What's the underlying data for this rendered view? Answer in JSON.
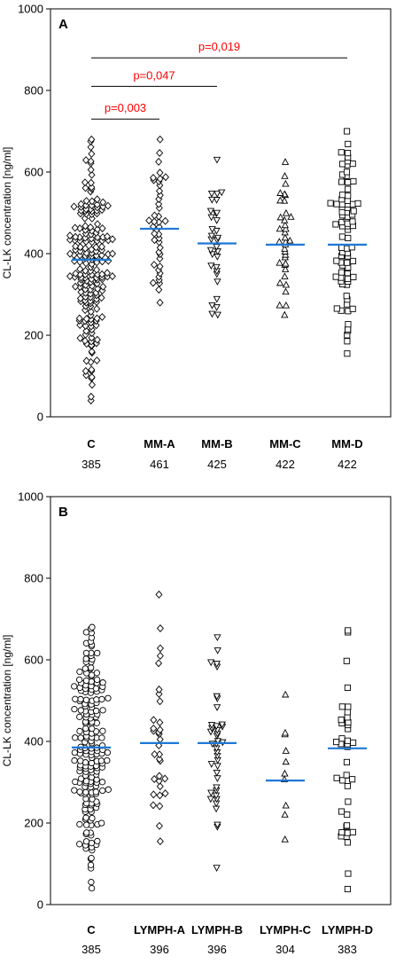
{
  "chart_data": [
    {
      "panel_label": "A",
      "type": "scatter",
      "ylabel": "CL-LK concentration [ng/ml]",
      "ylim": [
        0,
        1000
      ],
      "yticks": [
        0,
        200,
        400,
        600,
        800,
        1000
      ],
      "groups": [
        {
          "name": "C",
          "median_label": "385",
          "marker": "diamond",
          "median": 385,
          "n": 200,
          "min": 40,
          "max": 680
        },
        {
          "name": "MM-A",
          "median_label": "461",
          "marker": "diamond",
          "median": 461,
          "n": 42,
          "min": 280,
          "max": 680
        },
        {
          "name": "MM-B",
          "median_label": "425",
          "marker": "triangle-down",
          "median": 425,
          "n": 32,
          "min": 250,
          "max": 630
        },
        {
          "name": "MM-C",
          "median_label": "422",
          "marker": "triangle-up",
          "median": 422,
          "n": 36,
          "min": 250,
          "max": 625
        },
        {
          "name": "MM-D",
          "median_label": "422",
          "marker": "square",
          "median": 422,
          "n": 82,
          "min": 155,
          "max": 700
        }
      ],
      "annotations": [
        {
          "text": "p=0,003",
          "from": "C",
          "to": "MM-A",
          "y": 730
        },
        {
          "text": "p=0,047",
          "from": "C",
          "to": "MM-B",
          "y": 810
        },
        {
          "text": "p=0,019",
          "from": "C",
          "to": "MM-D",
          "y": 880
        }
      ],
      "median_color": "#1f78d4",
      "annotation_color": "#ff0000"
    },
    {
      "panel_label": "B",
      "type": "scatter",
      "ylabel": "CL-LK concentration [ng/ml]",
      "ylim": [
        0,
        1000
      ],
      "yticks": [
        0,
        200,
        400,
        600,
        800,
        1000
      ],
      "groups": [
        {
          "name": "C",
          "median_label": "385",
          "marker": "circle",
          "median": 385,
          "n": 200,
          "min": 40,
          "max": 680
        },
        {
          "name": "LYMPH-A",
          "median_label": "396",
          "marker": "diamond",
          "median": 396,
          "n": 33,
          "min": 155,
          "max": 760
        },
        {
          "name": "LYMPH-B",
          "median_label": "396",
          "marker": "triangle-down",
          "median": 396,
          "n": 40,
          "min": 90,
          "max": 655
        },
        {
          "name": "LYMPH-C",
          "median_label": "304",
          "marker": "triangle-up",
          "median": 304,
          "n": 10,
          "min": 160,
          "max": 515
        },
        {
          "name": "LYMPH-D",
          "median_label": "383",
          "marker": "square",
          "median": 383,
          "n": 40,
          "min": 38,
          "max": 672
        }
      ],
      "median_color": "#1f78d4"
    }
  ]
}
